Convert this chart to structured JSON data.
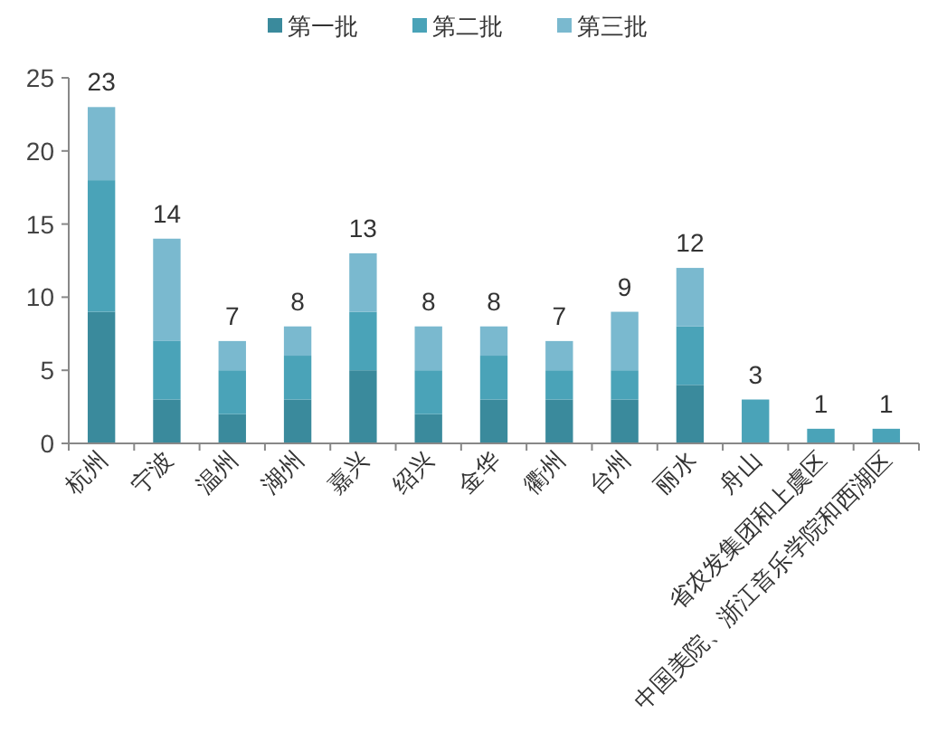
{
  "chart_data": {
    "type": "bar",
    "stacked": true,
    "categories": [
      "杭州",
      "宁波",
      "温州",
      "湖州",
      "嘉兴",
      "绍兴",
      "金华",
      "衢州",
      "台州",
      "丽水",
      "舟山",
      "省农发集团和上虞区",
      "中国美院、浙江音乐学院和西湖区"
    ],
    "series": [
      {
        "name": "第一批",
        "color": "#3a8a9c",
        "values": [
          9,
          3,
          2,
          3,
          5,
          2,
          3,
          3,
          3,
          4,
          null,
          null,
          null
        ]
      },
      {
        "name": "第二批",
        "color": "#4aa3b8",
        "values": [
          9,
          4,
          3,
          3,
          4,
          3,
          3,
          2,
          2,
          4,
          3,
          1,
          1
        ]
      },
      {
        "name": "第三批",
        "color": "#7ab9cf",
        "values": [
          5,
          7,
          2,
          2,
          4,
          3,
          2,
          2,
          4,
          4,
          null,
          null,
          null
        ]
      }
    ],
    "totals": [
      "23",
      "14",
      "7",
      "8",
      "13",
      "8",
      "8",
      "7",
      "9",
      "12",
      "3",
      "1",
      "1"
    ],
    "ylim": [
      0,
      25
    ],
    "yticks": [
      0,
      5,
      10,
      15,
      20,
      25
    ],
    "grid": false,
    "legend": "top"
  }
}
